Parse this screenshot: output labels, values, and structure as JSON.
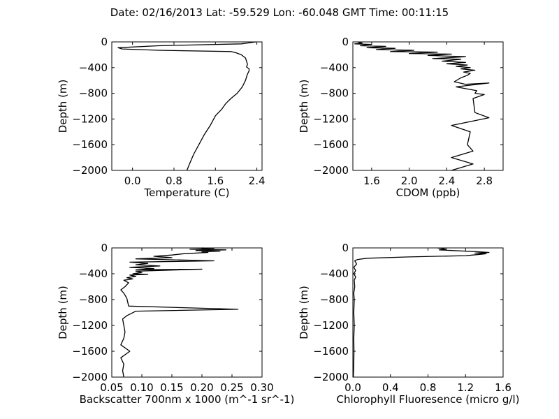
{
  "figure": {
    "title": "Date: 02/16/2013  Lat:  -59.529 Lon:  -60.048  GMT Time: 00:11:15"
  },
  "chart_data": [
    {
      "type": "line",
      "xlabel": "Temperature (C)",
      "ylabel": "Depth (m)",
      "xlim": [
        -0.4,
        2.5
      ],
      "ylim": [
        -2000,
        0
      ],
      "xticks": [
        0.0,
        0.8,
        1.6,
        2.4
      ],
      "xtick_labels": [
        "0.0",
        "0.8",
        "1.6",
        "2.4"
      ],
      "yticks": [
        0,
        -400,
        -800,
        -1200,
        -1600,
        -2000
      ],
      "ytick_labels": [
        "0",
        "−400",
        "−800",
        "−1200",
        "−1600",
        "−2000"
      ],
      "series": [
        {
          "points": [
            [
              2.38,
              0
            ],
            [
              2.1,
              -30
            ],
            [
              0.5,
              -60
            ],
            [
              -0.28,
              -90
            ],
            [
              -0.2,
              -110
            ],
            [
              0.5,
              -130
            ],
            [
              1.9,
              -150
            ],
            [
              2.0,
              -170
            ],
            [
              2.1,
              -200
            ],
            [
              2.18,
              -250
            ],
            [
              2.2,
              -300
            ],
            [
              2.22,
              -350
            ],
            [
              2.2,
              -390
            ],
            [
              2.25,
              -420
            ],
            [
              2.25,
              -450
            ],
            [
              2.22,
              -500
            ],
            [
              2.18,
              -600
            ],
            [
              2.12,
              -700
            ],
            [
              2.02,
              -800
            ],
            [
              1.9,
              -880
            ],
            [
              1.8,
              -960
            ],
            [
              1.72,
              -1050
            ],
            [
              1.6,
              -1150
            ],
            [
              1.5,
              -1300
            ],
            [
              1.38,
              -1450
            ],
            [
              1.28,
              -1600
            ],
            [
              1.18,
              -1750
            ],
            [
              1.1,
              -1900
            ],
            [
              1.05,
              -2000
            ]
          ]
        }
      ]
    },
    {
      "type": "line",
      "xlabel": "CDOM (ppb)",
      "ylabel": "Depth (m)",
      "xlim": [
        1.4,
        3.0
      ],
      "ylim": [
        -2000,
        0
      ],
      "xticks": [
        1.6,
        2.0,
        2.4,
        2.8
      ],
      "xtick_labels": [
        "1.6",
        "2.0",
        "2.4",
        "2.8"
      ],
      "yticks": [
        0,
        -400,
        -800,
        -1200,
        -1600,
        -2000
      ],
      "ytick_labels": [
        "0",
        "−400",
        "−800",
        "−1200",
        "−1600",
        "−2000"
      ],
      "series": [
        {
          "points": [
            [
              1.45,
              0
            ],
            [
              1.5,
              -20
            ],
            [
              1.42,
              -30
            ],
            [
              1.6,
              -40
            ],
            [
              1.48,
              -60
            ],
            [
              1.75,
              -70
            ],
            [
              1.55,
              -90
            ],
            [
              1.85,
              -100
            ],
            [
              1.65,
              -120
            ],
            [
              2.05,
              -130
            ],
            [
              1.8,
              -150
            ],
            [
              2.3,
              -160
            ],
            [
              2.0,
              -180
            ],
            [
              2.45,
              -190
            ],
            [
              2.2,
              -210
            ],
            [
              2.6,
              -230
            ],
            [
              2.25,
              -260
            ],
            [
              2.55,
              -270
            ],
            [
              2.35,
              -300
            ],
            [
              2.6,
              -320
            ],
            [
              2.4,
              -340
            ],
            [
              2.62,
              -360
            ],
            [
              2.5,
              -380
            ],
            [
              2.65,
              -400
            ],
            [
              2.55,
              -420
            ],
            [
              2.7,
              -440
            ],
            [
              2.58,
              -470
            ],
            [
              2.65,
              -490
            ],
            [
              2.62,
              -520
            ],
            [
              2.55,
              -560
            ],
            [
              2.48,
              -620
            ],
            [
              2.6,
              -660
            ],
            [
              2.85,
              -640
            ],
            [
              2.5,
              -700
            ],
            [
              2.72,
              -760
            ],
            [
              2.7,
              -800
            ],
            [
              2.8,
              -820
            ],
            [
              2.68,
              -880
            ],
            [
              2.7,
              -1100
            ],
            [
              2.85,
              -1180
            ],
            [
              2.45,
              -1300
            ],
            [
              2.65,
              -1400
            ],
            [
              2.62,
              -1600
            ],
            [
              2.68,
              -1700
            ],
            [
              2.45,
              -1800
            ],
            [
              2.68,
              -1900
            ],
            [
              2.45,
              -2000
            ]
          ]
        }
      ]
    },
    {
      "type": "line",
      "xlabel": "Backscatter 700nm x 1000 (m^-1 sr^-1)",
      "ylabel": "Depth (m)",
      "xlim": [
        0.05,
        0.3
      ],
      "ylim": [
        -2000,
        0
      ],
      "xticks": [
        0.05,
        0.1,
        0.15,
        0.2,
        0.25,
        0.3
      ],
      "xtick_labels": [
        "0.05",
        "0.10",
        "0.15",
        "0.20",
        "0.25",
        "0.30"
      ],
      "yticks": [
        0,
        -400,
        -800,
        -1200,
        -1600,
        -2000
      ],
      "ytick_labels": [
        "0",
        "−400",
        "−800",
        "−1200",
        "−1600",
        "−2000"
      ],
      "series": [
        {
          "points": [
            [
              0.2,
              0
            ],
            [
              0.22,
              -10
            ],
            [
              0.18,
              -20
            ],
            [
              0.24,
              -30
            ],
            [
              0.19,
              -40
            ],
            [
              0.23,
              -50
            ],
            [
              0.2,
              -60
            ],
            [
              0.21,
              -70
            ],
            [
              0.17,
              -90
            ],
            [
              0.15,
              -110
            ],
            [
              0.12,
              -130
            ],
            [
              0.15,
              -150
            ],
            [
              0.09,
              -170
            ],
            [
              0.22,
              -200
            ],
            [
              0.08,
              -220
            ],
            [
              0.11,
              -240
            ],
            [
              0.09,
              -260
            ],
            [
              0.13,
              -280
            ],
            [
              0.08,
              -300
            ],
            [
              0.12,
              -320
            ],
            [
              0.09,
              -340
            ],
            [
              0.2,
              -330
            ],
            [
              0.09,
              -360
            ],
            [
              0.1,
              -380
            ],
            [
              0.085,
              -400
            ],
            [
              0.11,
              -410
            ],
            [
              0.08,
              -420
            ],
            [
              0.09,
              -440
            ],
            [
              0.075,
              -460
            ],
            [
              0.085,
              -480
            ],
            [
              0.07,
              -500
            ],
            [
              0.078,
              -540
            ],
            [
              0.072,
              -600
            ],
            [
              0.065,
              -650
            ],
            [
              0.07,
              -700
            ],
            [
              0.075,
              -780
            ],
            [
              0.078,
              -900
            ],
            [
              0.26,
              -950
            ],
            [
              0.09,
              -980
            ],
            [
              0.075,
              -1050
            ],
            [
              0.068,
              -1100
            ],
            [
              0.07,
              -1200
            ],
            [
              0.072,
              -1300
            ],
            [
              0.07,
              -1400
            ],
            [
              0.065,
              -1500
            ],
            [
              0.08,
              -1600
            ],
            [
              0.065,
              -1700
            ],
            [
              0.07,
              -1800
            ],
            [
              0.068,
              -1900
            ],
            [
              0.07,
              -2000
            ]
          ]
        }
      ]
    },
    {
      "type": "line",
      "xlabel": "Chlorophyll Fluoresence (micro g/l)",
      "ylabel": "Depth (m)",
      "xlim": [
        0.0,
        1.6
      ],
      "ylim": [
        -2000,
        0
      ],
      "xticks": [
        0.0,
        0.4,
        0.8,
        1.2,
        1.6
      ],
      "xtick_labels": [
        "0.0",
        "0.4",
        "0.8",
        "1.2",
        "1.6"
      ],
      "yticks": [
        0,
        -400,
        -800,
        -1200,
        -1600,
        -2000
      ],
      "ytick_labels": [
        "0",
        "−400",
        "−800",
        "−1200",
        "−1600",
        "−2000"
      ],
      "series": [
        {
          "points": [
            [
              0.9,
              0
            ],
            [
              0.95,
              -10
            ],
            [
              1.0,
              -20
            ],
            [
              0.92,
              -30
            ],
            [
              1.05,
              -40
            ],
            [
              1.35,
              -60
            ],
            [
              1.45,
              -70
            ],
            [
              1.3,
              -80
            ],
            [
              1.42,
              -90
            ],
            [
              1.35,
              -100
            ],
            [
              1.2,
              -120
            ],
            [
              0.6,
              -140
            ],
            [
              0.15,
              -160
            ],
            [
              0.05,
              -180
            ],
            [
              0.02,
              -200
            ],
            [
              0.04,
              -250
            ],
            [
              0.01,
              -300
            ],
            [
              0.03,
              -350
            ],
            [
              0.01,
              -400
            ],
            [
              0.03,
              -450
            ],
            [
              0.015,
              -500
            ],
            [
              0.02,
              -600
            ],
            [
              0.01,
              -700
            ],
            [
              0.015,
              -800
            ],
            [
              0.01,
              -1000
            ],
            [
              0.015,
              -1200
            ],
            [
              0.01,
              -1400
            ],
            [
              0.012,
              -1600
            ],
            [
              0.01,
              -1800
            ],
            [
              0.005,
              -2000
            ]
          ]
        }
      ]
    }
  ]
}
